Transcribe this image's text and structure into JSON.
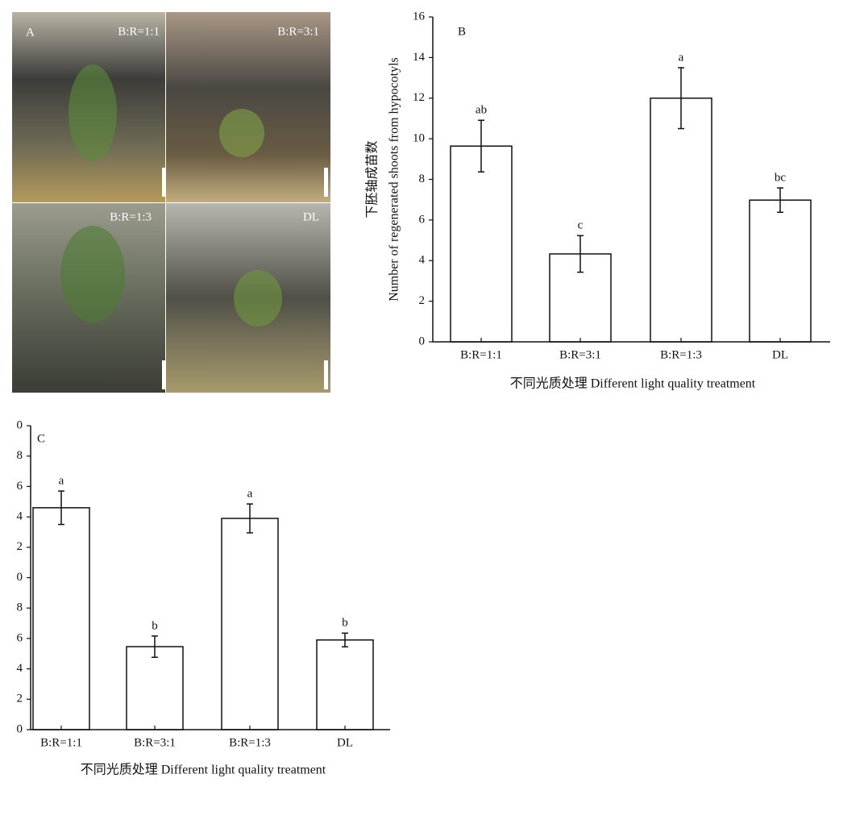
{
  "photo_panel": {
    "label": "A",
    "captions": [
      "B:R=1:1",
      "B:R=3:1",
      "B:R=1:3",
      "DL"
    ]
  },
  "chart_data": [
    {
      "type": "bar",
      "panel": "B",
      "categories": [
        "B:R=1:1",
        "B:R=3:1",
        "B:R=1:3",
        "DL"
      ],
      "values": [
        9.64,
        4.33,
        12.0,
        6.98
      ],
      "errors": [
        1.27,
        0.9,
        1.5,
        0.6
      ],
      "annotations": [
        "ab",
        "c",
        "a",
        "bc"
      ],
      "ylabel": [
        "下胚轴成苗数",
        "Number of regenerated shoots from hypocotyls"
      ],
      "xlabel": "不同光质处理 Different light quality treatment",
      "ylim": [
        0,
        16
      ],
      "yticks": [
        0,
        2,
        4,
        6,
        8,
        10,
        12,
        14,
        16
      ],
      "color": "#ffffff"
    },
    {
      "type": "bar",
      "panel": "C",
      "categories": [
        "B:R=1:1",
        "B:R=3:1",
        "B:R=1:3",
        "DL"
      ],
      "values": [
        14.6,
        5.46,
        13.9,
        5.9
      ],
      "errors": [
        1.1,
        0.7,
        0.95,
        0.45
      ],
      "annotations": [
        "a",
        "b",
        "a",
        "b"
      ],
      "xlabel": "不同光质处理 Different light quality treatment",
      "ylim": [
        0,
        20
      ],
      "yticks": [
        0,
        2,
        4,
        6,
        8,
        {
          "value": 10,
          "label": "0"
        },
        {
          "value": 12,
          "label": "2"
        },
        {
          "value": 14,
          "label": "4"
        },
        {
          "value": 16,
          "label": "6"
        },
        {
          "value": 18,
          "label": "8"
        },
        {
          "value": 20,
          "label": "0"
        }
      ],
      "color": "#ffffff"
    }
  ]
}
